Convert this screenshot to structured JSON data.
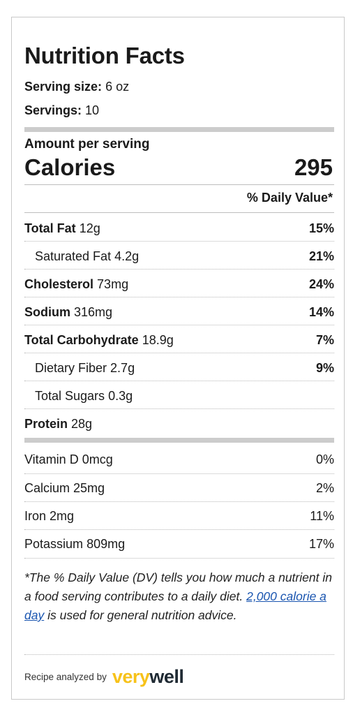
{
  "title": "Nutrition Facts",
  "serving_size": {
    "label": "Serving size:",
    "value": "6 oz"
  },
  "servings": {
    "label": "Servings:",
    "value": "10"
  },
  "amount_per_serving": "Amount per serving",
  "calories": {
    "label": "Calories",
    "value": "295"
  },
  "daily_value_header": "% Daily Value*",
  "nutrients": [
    {
      "name": "Total Fat",
      "amount": "12g",
      "dv": "15%"
    },
    {
      "name": "Saturated Fat",
      "amount": "4.2g",
      "dv": "21%"
    },
    {
      "name": "Cholesterol",
      "amount": "73mg",
      "dv": "24%"
    },
    {
      "name": "Sodium",
      "amount": "316mg",
      "dv": "14%"
    },
    {
      "name": "Total Carbohydrate",
      "amount": "18.9g",
      "dv": "7%"
    },
    {
      "name": "Dietary Fiber",
      "amount": "2.7g",
      "dv": "9%"
    },
    {
      "name": "Total Sugars",
      "amount": "0.3g",
      "dv": ""
    },
    {
      "name": "Protein",
      "amount": "28g",
      "dv": ""
    }
  ],
  "vitamins": [
    {
      "name": "Vitamin D",
      "amount": "0mcg",
      "dv": "0%"
    },
    {
      "name": "Calcium",
      "amount": "25mg",
      "dv": "2%"
    },
    {
      "name": "Iron",
      "amount": "2mg",
      "dv": "11%"
    },
    {
      "name": "Potassium",
      "amount": "809mg",
      "dv": "17%"
    }
  ],
  "footnote": {
    "prefix": "*The % Daily Value (DV) tells you how much a nutrient in a food serving contributes to a daily diet. ",
    "link": "2,000 calorie a day",
    "suffix": " is used for general nutrition advice."
  },
  "analyzed_by": "Recipe analyzed by",
  "logo": {
    "part1": "very",
    "part2": "well",
    "color_primary": "#f7c21a",
    "color_secondary": "#1f2a33"
  }
}
